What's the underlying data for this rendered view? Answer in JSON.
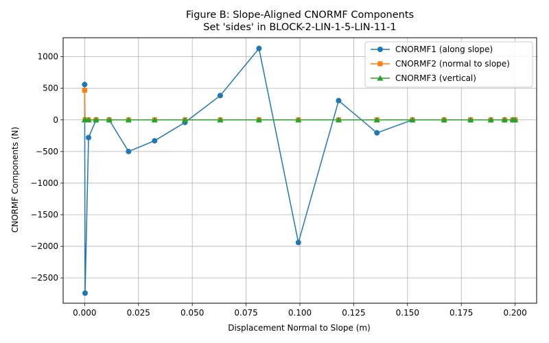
{
  "chart_data": {
    "type": "line",
    "title": "Figure B: Slope-Aligned CNORMF Components",
    "subtitle": "Set 'sides' in BLOCK-2-LIN-1-5-LIN-11-1",
    "xlabel": "Displacement Normal to Slope (m)",
    "ylabel": "CNORMF Components (N)",
    "xlim": [
      -0.01,
      0.21
    ],
    "ylim": [
      -2900,
      1300
    ],
    "xticks": [
      0.0,
      0.025,
      0.05,
      0.075,
      0.1,
      0.125,
      0.15,
      0.175,
      0.2
    ],
    "xtick_labels": [
      "0.000",
      "0.025",
      "0.050",
      "0.075",
      "0.100",
      "0.125",
      "0.150",
      "0.175",
      "0.200"
    ],
    "yticks": [
      -2500,
      -2000,
      -1500,
      -1000,
      -500,
      0,
      500,
      1000
    ],
    "ytick_labels": [
      "−2500",
      "−2000",
      "−1500",
      "−1000",
      "−500",
      "0",
      "500",
      "1000"
    ],
    "grid": true,
    "legend_position": "top-right",
    "x": [
      0.0,
      0.0002,
      0.0018,
      0.0053,
      0.0114,
      0.0204,
      0.0325,
      0.0466,
      0.063,
      0.081,
      0.0993,
      0.118,
      0.1358,
      0.1523,
      0.167,
      0.1793,
      0.1887,
      0.1951,
      0.1989,
      0.2
    ],
    "series": [
      {
        "name": "CNORMF1 (along slope)",
        "color": "#1f77b4",
        "marker": "circle",
        "values": [
          560,
          -2740,
          -280,
          0,
          0,
          -500,
          -330,
          -40,
          385,
          1130,
          -1940,
          305,
          -205,
          0,
          0,
          0,
          0,
          0,
          0,
          0
        ]
      },
      {
        "name": "CNORMF2 (normal to slope)",
        "color": "#ff7f0e",
        "marker": "square",
        "values": [
          470,
          0,
          0,
          0,
          0,
          0,
          0,
          0,
          0,
          0,
          0,
          0,
          0,
          0,
          0,
          0,
          0,
          0,
          0,
          0
        ]
      },
      {
        "name": "CNORMF3 (vertical)",
        "color": "#2ca02c",
        "marker": "triangle",
        "values": [
          0,
          0,
          0,
          0,
          0,
          0,
          0,
          0,
          0,
          0,
          0,
          0,
          0,
          0,
          0,
          0,
          0,
          0,
          0,
          0
        ]
      }
    ]
  }
}
